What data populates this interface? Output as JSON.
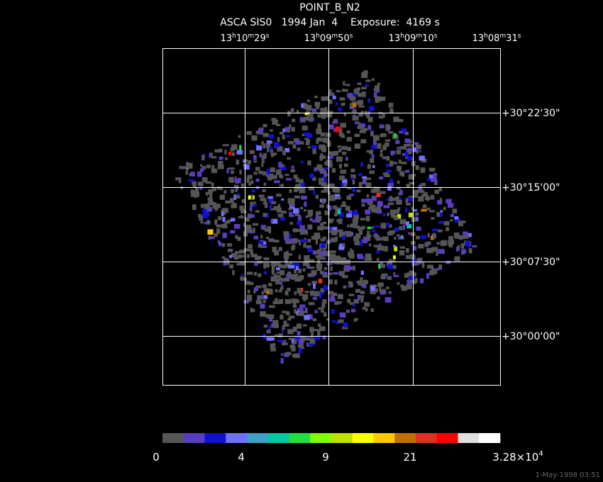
{
  "header": {
    "title": "POINT_B_N2",
    "subtitle": "ASCA SIS0   1994 Jan  4    Exposure:  4169 s"
  },
  "ra_labels": [
    [
      "13",
      "h",
      "10",
      "m",
      "29",
      "s"
    ],
    [
      "13",
      "h",
      "09",
      "m",
      "50",
      "s"
    ],
    [
      "13",
      "h",
      "09",
      "m",
      "10",
      "s"
    ],
    [
      "13",
      "h",
      "08",
      "m",
      "31",
      "s"
    ]
  ],
  "dec_labels": [
    "+30°22'30\"",
    "+30°15'00\"",
    "+30°07'30\"",
    "+30°00'00\""
  ],
  "colorbar": {
    "colors": [
      "#555555",
      "#5a3cc0",
      "#1010d0",
      "#7070ff",
      "#3ca0c8",
      "#00c8a0",
      "#20e040",
      "#80ff00",
      "#c0e000",
      "#ffff00",
      "#ffc800",
      "#c07000",
      "#e03020",
      "#ff0000",
      "#e0e0e0",
      "#ffffff"
    ],
    "labels": [
      [
        "0"
      ],
      [
        "4"
      ],
      [
        "9"
      ],
      [
        "21"
      ],
      [
        "3.28×10",
        "4"
      ]
    ]
  },
  "footer": "1-May-1998 03:51"
}
